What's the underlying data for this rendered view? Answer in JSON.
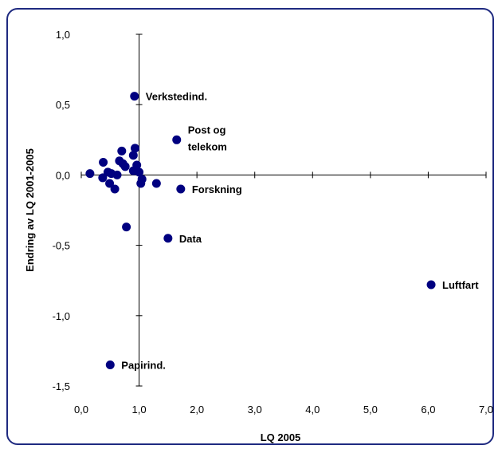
{
  "chart_data": {
    "type": "scatter",
    "title": "",
    "xlabel": "LQ 2005",
    "ylabel": "Endring av LQ 2001-2005",
    "xlim": [
      0,
      7
    ],
    "ylim": [
      -1.5,
      1.0
    ],
    "x_ticks": [
      "0,0",
      "1,0",
      "2,0",
      "3,0",
      "4,0",
      "5,0",
      "6,0",
      "7,0"
    ],
    "y_ticks": [
      "1,0",
      "0,5",
      "0,0",
      "-0,5",
      "-1,0",
      "-1,5"
    ],
    "grid": false,
    "legend": "none",
    "marker_color": "#000080",
    "points": [
      {
        "x": 0.15,
        "y": 0.01
      },
      {
        "x": 0.37,
        "y": -0.02
      },
      {
        "x": 0.38,
        "y": 0.09
      },
      {
        "x": 0.46,
        "y": 0.02
      },
      {
        "x": 0.49,
        "y": -0.06
      },
      {
        "x": 0.52,
        "y": 0.01
      },
      {
        "x": 0.58,
        "y": -0.1
      },
      {
        "x": 0.62,
        "y": 0.0
      },
      {
        "x": 0.66,
        "y": 0.1
      },
      {
        "x": 0.7,
        "y": 0.17
      },
      {
        "x": 0.72,
        "y": 0.08
      },
      {
        "x": 0.76,
        "y": 0.06
      },
      {
        "x": 0.78,
        "y": -0.37
      },
      {
        "x": 0.9,
        "y": 0.03
      },
      {
        "x": 0.9,
        "y": 0.14
      },
      {
        "x": 0.93,
        "y": 0.19
      },
      {
        "x": 0.96,
        "y": 0.07
      },
      {
        "x": 1.0,
        "y": 0.02
      },
      {
        "x": 1.03,
        "y": -0.06
      },
      {
        "x": 1.05,
        "y": -0.03
      },
      {
        "x": 1.3,
        "y": -0.06
      },
      {
        "x": 0.92,
        "y": 0.56,
        "label": "Verkstedind."
      },
      {
        "x": 1.65,
        "y": 0.25,
        "label": [
          "Post og",
          "telekom"
        ]
      },
      {
        "x": 1.72,
        "y": -0.1,
        "label": "Forskning"
      },
      {
        "x": 1.5,
        "y": -0.45,
        "label": "Data"
      },
      {
        "x": 6.05,
        "y": -0.78,
        "label": "Luftfart"
      },
      {
        "x": 0.5,
        "y": -1.35,
        "label": "Papirind."
      }
    ]
  }
}
